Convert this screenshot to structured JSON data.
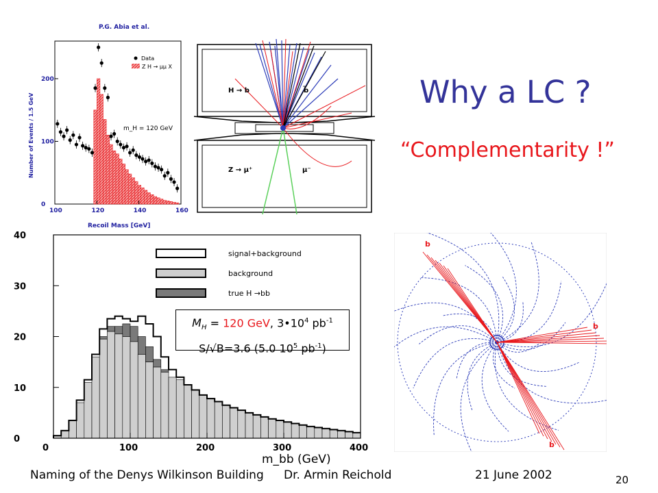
{
  "slide": {
    "title": "Why a LC ?",
    "subtitle": "“Complementarity !”",
    "page_number": "20"
  },
  "footer": {
    "left": "Naming of the Denys Wilkinson Building",
    "center": "Dr. Armin Reichold",
    "date": "21 June 2002"
  },
  "colors": {
    "title": "#333399",
    "accent": "#e8161b",
    "hatch_red": "#e8161b",
    "track_blue": "#2b3bb8"
  },
  "chart_data": [
    {
      "type": "bar",
      "title": "P.G. Abia et al.",
      "xlabel": "Recoil Mass [GeV]",
      "ylabel": "Number of Events / 1.5 GeV",
      "xlim": [
        100,
        160
      ],
      "ylim": [
        0,
        260
      ],
      "xticks": [
        "100",
        "120",
        "140",
        "160"
      ],
      "yticks": [
        "0",
        "100",
        "200"
      ],
      "annotation": "m_H = 120 GeV",
      "legend": [
        "Data",
        "Z H → μμ X"
      ],
      "legend_position": "top-right",
      "signal": {
        "name": "Z H → μμ X",
        "x": [
          119.25,
          120.75,
          122.25,
          123.75,
          125.25,
          126.75,
          128.25,
          129.75,
          131.25,
          132.75,
          134.25,
          135.75,
          137.25,
          138.75,
          140.25,
          141.75,
          143.25,
          144.75,
          146.25,
          147.75,
          149.25,
          150.75,
          152.25,
          153.75,
          155.25,
          156.75,
          158.25
        ],
        "values": [
          150,
          200,
          175,
          135,
          110,
          95,
          85,
          80,
          72,
          64,
          55,
          48,
          42,
          36,
          30,
          26,
          22,
          18,
          15,
          12,
          10,
          8,
          6,
          5,
          4,
          3,
          2
        ]
      },
      "data": {
        "name": "Data",
        "x": [
          101.25,
          102.75,
          104.25,
          105.75,
          107.25,
          108.75,
          110.25,
          111.75,
          113.25,
          114.75,
          116.25,
          117.75,
          119.25,
          120.75,
          122.25,
          123.75,
          125.25,
          126.75,
          128.25,
          129.75,
          131.25,
          132.75,
          134.25,
          135.75,
          137.25,
          138.75,
          140.25,
          141.75,
          143.25,
          144.75,
          146.25,
          147.75,
          149.25,
          150.75,
          152.25,
          153.75,
          155.25,
          156.75,
          158.25
        ],
        "values": [
          128,
          115,
          108,
          118,
          102,
          110,
          95,
          106,
          93,
          90,
          88,
          82,
          185,
          250,
          225,
          185,
          170,
          108,
          112,
          100,
          95,
          90,
          92,
          82,
          86,
          78,
          75,
          72,
          68,
          70,
          65,
          60,
          58,
          55,
          45,
          50,
          40,
          35,
          25
        ]
      }
    },
    {
      "type": "area",
      "xlabel": "m_bb (GeV)",
      "ylabel": "",
      "xlim": [
        0,
        400
      ],
      "ylim": [
        0,
        40
      ],
      "xticks": [
        "0",
        "100",
        "200",
        "300",
        "400"
      ],
      "yticks": [
        "0",
        "10",
        "20",
        "30",
        "40"
      ],
      "legend": [
        "signal+background",
        "background",
        "true H →bb"
      ],
      "legend_position": "top-right",
      "annotation_lines": [
        "M_H = 120 GeV, 3•10^4 pb^-1",
        "S/√B=3.6 (5.0 10^5 pb^-1)"
      ],
      "bin_width": 10,
      "x": [
        5,
        15,
        25,
        35,
        45,
        55,
        65,
        75,
        85,
        95,
        105,
        115,
        125,
        135,
        145,
        155,
        165,
        175,
        185,
        195,
        205,
        215,
        225,
        235,
        245,
        255,
        265,
        275,
        285,
        295,
        305,
        315,
        325,
        335,
        345,
        355,
        365,
        375,
        385,
        395
      ],
      "series": [
        {
          "name": "background",
          "values": [
            0.5,
            1.5,
            3.5,
            7,
            11,
            16,
            19.5,
            21,
            20.5,
            20,
            19,
            16.5,
            15,
            14,
            13,
            12,
            11.5,
            10.5,
            9.5,
            8.5,
            7.8,
            7.2,
            6.5,
            6,
            5.5,
            5,
            4.6,
            4.2,
            3.8,
            3.5,
            3.2,
            2.9,
            2.6,
            2.3,
            2.1,
            1.9,
            1.7,
            1.5,
            1.3,
            1.1
          ]
        },
        {
          "name": "true H →bb",
          "values": [
            0,
            0,
            0,
            0,
            0,
            0,
            0.5,
            1,
            1.5,
            2.5,
            3,
            3.5,
            3,
            1.5,
            0.5,
            0,
            0,
            0,
            0,
            0,
            0,
            0,
            0,
            0,
            0,
            0,
            0,
            0,
            0,
            0,
            0,
            0,
            0,
            0,
            0,
            0,
            0,
            0,
            0,
            0
          ]
        },
        {
          "name": "signal+background",
          "values": [
            0.5,
            1.5,
            3.5,
            7.5,
            11.5,
            16.5,
            21.5,
            23.5,
            24,
            23.5,
            23,
            24,
            22.5,
            20,
            16,
            13.5,
            12,
            10.5,
            9.5,
            8.5,
            7.8,
            7.2,
            6.5,
            6,
            5.5,
            5,
            4.6,
            4.2,
            3.8,
            3.5,
            3.2,
            2.9,
            2.6,
            2.3,
            2.1,
            1.9,
            1.7,
            1.5,
            1.3,
            1.1
          ]
        }
      ]
    }
  ],
  "event_display_top": {
    "labels": [
      "H → b",
      "b̅",
      "Z → μ⁺",
      "μ⁻"
    ]
  },
  "event_display_round": {
    "labels": [
      "b",
      "b",
      "b"
    ]
  }
}
